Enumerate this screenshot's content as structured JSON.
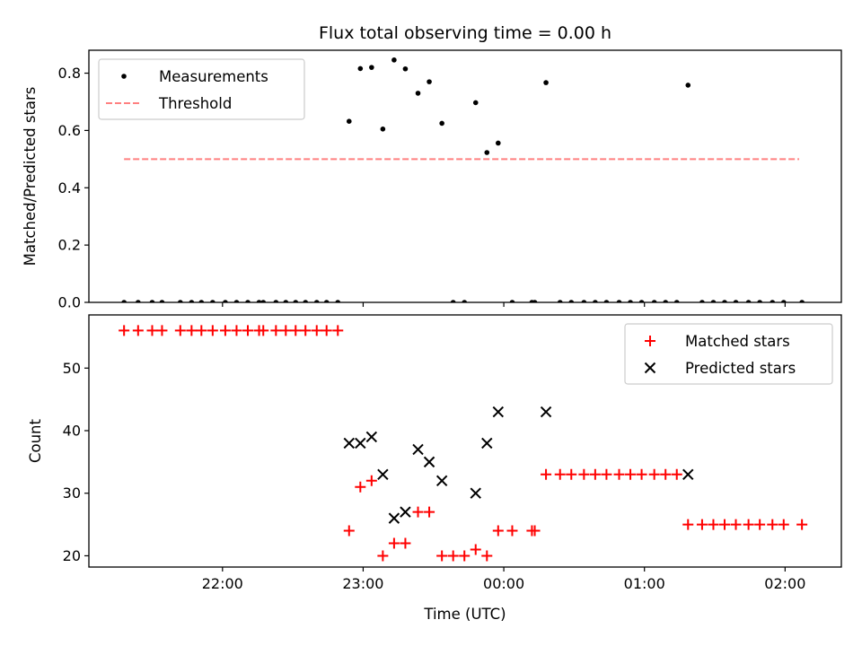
{
  "chart_data": [
    {
      "type": "scatter",
      "title": "Flux total observing time = 0.00 h",
      "xlabel": "",
      "ylabel": "Matched/Predicted stars",
      "ylim": [
        0,
        0.88
      ],
      "yticks": [
        0.0,
        0.2,
        0.4,
        0.6,
        0.8
      ],
      "ytick_labels": [
        "0.0",
        "0.2",
        "0.4",
        "0.6",
        "0.8"
      ],
      "x_axis": "time (hours relative to 00:00 UTC)",
      "xlim": [
        -2.95,
        2.4
      ],
      "xticks": [
        -2,
        -1,
        0,
        1,
        2
      ],
      "legend": {
        "position": "upper left",
        "entries": [
          "Measurements",
          "Threshold"
        ]
      },
      "threshold": {
        "name": "Threshold",
        "value": 0.5,
        "x_range": [
          -2.7,
          2.1
        ],
        "color": "#ff8080"
      },
      "series": [
        {
          "name": "Measurements",
          "color": "#000000",
          "marker": "dot",
          "x": [
            -2.7,
            -2.6,
            -2.5,
            -2.43,
            -2.3,
            -2.22,
            -2.15,
            -2.07,
            -1.98,
            -1.9,
            -1.82,
            -1.74,
            -1.71,
            -1.62,
            -1.55,
            -1.48,
            -1.41,
            -1.33,
            -1.26,
            -1.18,
            -1.1,
            -1.02,
            -0.94,
            -0.86,
            -0.78,
            -0.7,
            -0.61,
            -0.53,
            -0.44,
            -0.36,
            -0.28,
            -0.2,
            -0.12,
            -0.04,
            0.06,
            0.2,
            0.22,
            0.3,
            0.4,
            0.48,
            0.57,
            0.65,
            0.73,
            0.82,
            0.9,
            0.98,
            1.07,
            1.15,
            1.23,
            1.31,
            1.41,
            1.49,
            1.57,
            1.65,
            1.74,
            1.82,
            1.91,
            1.99,
            2.12
          ],
          "y": [
            0,
            0,
            0,
            0,
            0,
            0,
            0,
            0,
            0,
            0,
            0,
            0,
            0,
            0,
            0,
            0,
            0,
            0,
            0,
            0,
            0.632,
            0.816,
            0.82,
            0.605,
            0.846,
            0.815,
            0.73,
            0.77,
            0.625,
            0,
            0,
            0.697,
            0.523,
            0.556,
            0,
            0,
            0,
            0.767,
            0,
            0,
            0,
            0,
            0,
            0,
            0,
            0,
            0,
            0,
            0,
            0.758,
            0,
            0,
            0,
            0,
            0,
            0,
            0,
            0,
            0
          ]
        }
      ]
    },
    {
      "type": "scatter",
      "title": "",
      "xlabel": "Time (UTC)",
      "ylabel": "Count",
      "ylim": [
        18.2,
        58.5
      ],
      "yticks": [
        20,
        30,
        40,
        50
      ],
      "ytick_labels": [
        "20",
        "30",
        "40",
        "50"
      ],
      "x_axis": "time (hours relative to 00:00 UTC)",
      "xlim": [
        -2.95,
        2.4
      ],
      "xticks": [
        -2,
        -1,
        0,
        1,
        2
      ],
      "xtick_labels": [
        "22:00",
        "23:00",
        "00:00",
        "01:00",
        "02:00"
      ],
      "legend": {
        "position": "upper right",
        "entries": [
          "Matched stars",
          "Predicted stars"
        ]
      },
      "series": [
        {
          "name": "Matched stars",
          "color": "#ff0000",
          "marker": "plus",
          "x": [
            -2.7,
            -2.6,
            -2.5,
            -2.43,
            -2.3,
            -2.22,
            -2.15,
            -2.07,
            -1.98,
            -1.9,
            -1.82,
            -1.74,
            -1.71,
            -1.62,
            -1.55,
            -1.48,
            -1.41,
            -1.33,
            -1.26,
            -1.18,
            -1.1,
            -1.02,
            -0.94,
            -0.86,
            -0.78,
            -0.7,
            -0.61,
            -0.53,
            -0.44,
            -0.36,
            -0.28,
            -0.2,
            -0.12,
            -0.04,
            0.06,
            0.2,
            0.22,
            0.3,
            0.4,
            0.48,
            0.57,
            0.65,
            0.73,
            0.82,
            0.9,
            0.98,
            1.07,
            1.15,
            1.23,
            1.31,
            1.41,
            1.49,
            1.57,
            1.65,
            1.74,
            1.82,
            1.91,
            1.99,
            2.12
          ],
          "y": [
            56,
            56,
            56,
            56,
            56,
            56,
            56,
            56,
            56,
            56,
            56,
            56,
            56,
            56,
            56,
            56,
            56,
            56,
            56,
            56,
            24,
            31,
            32,
            20,
            22,
            22,
            27,
            27,
            20,
            20,
            20,
            21,
            20,
            24,
            24,
            24,
            24,
            33,
            33,
            33,
            33,
            33,
            33,
            33,
            33,
            33,
            33,
            33,
            33,
            25,
            25,
            25,
            25,
            25,
            25,
            25,
            25,
            25,
            25
          ]
        },
        {
          "name": "Predicted stars",
          "color": "#000000",
          "marker": "x",
          "x": [
            -1.1,
            -1.02,
            -0.94,
            -0.86,
            -0.78,
            -0.7,
            -0.61,
            -0.53,
            -0.44,
            -0.2,
            -0.12,
            -0.04,
            0.3,
            1.31
          ],
          "y": [
            38,
            38,
            39,
            33,
            26,
            27,
            37,
            35,
            32,
            30,
            38,
            43,
            43,
            33
          ]
        }
      ]
    }
  ]
}
